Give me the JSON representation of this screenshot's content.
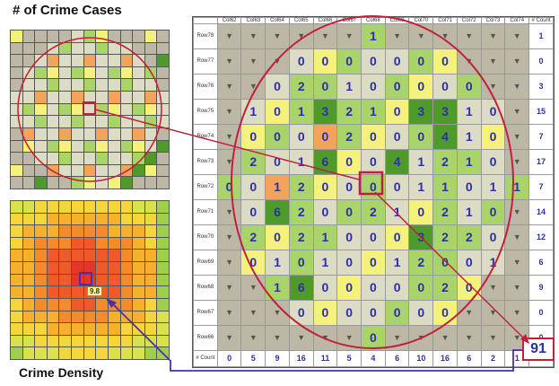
{
  "titles": {
    "count_map": "# of Crime Cases",
    "density_map": "Crime Density"
  },
  "table": {
    "corner": "",
    "col_headers": [
      "Col62",
      "Col63",
      "Col64",
      "Col65",
      "Col66",
      "Col67",
      "Col68",
      "Col69",
      "Col70",
      "Col71",
      "Col72",
      "Col73",
      "Col74"
    ],
    "count_header": "# Count",
    "row_headers": [
      "Row78",
      "Row77",
      "Row76",
      "Row75",
      "Row74",
      "Row73",
      "Row72",
      "Row71",
      "Row70",
      "Row69",
      "Row68",
      "Row67",
      "Row66"
    ],
    "row_counts": [
      "1",
      "0",
      "3",
      "15",
      "7",
      "17",
      "7",
      "14",
      "12",
      "6",
      "9",
      "0",
      "0"
    ],
    "col_count_label": "# Count",
    "col_counts": [
      "0",
      "5",
      "9",
      "16",
      "11",
      "5",
      "4",
      "6",
      "10",
      "16",
      "6",
      "2",
      "1"
    ],
    "cells": [
      [
        "▼",
        "▼",
        "▼",
        "▼",
        "▼",
        "▼",
        "1",
        "▼",
        "▼",
        "▼",
        "▼",
        "▼",
        "▼"
      ],
      [
        "▼",
        "▼",
        "▼",
        "0",
        "0",
        "0",
        "0",
        "0",
        "0",
        "0",
        "▼",
        "▼",
        "▼"
      ],
      [
        "▼",
        "▼",
        "0",
        "2",
        "0",
        "1",
        "0",
        "0",
        "0",
        "0",
        "0",
        "▼",
        "▼"
      ],
      [
        "▼",
        "1",
        "0",
        "1",
        "3",
        "2",
        "1",
        "0",
        "3",
        "3",
        "1",
        "0",
        "▼"
      ],
      [
        "▼",
        "0",
        "0",
        "0",
        "0",
        "2",
        "0",
        "0",
        "0",
        "4",
        "1",
        "0",
        "▼"
      ],
      [
        "▼",
        "2",
        "0",
        "1",
        "6",
        "0",
        "0",
        "4",
        "1",
        "2",
        "1",
        "0",
        "▼"
      ],
      [
        "0",
        "0",
        "1",
        "2",
        "0",
        "0",
        "0",
        "0",
        "1",
        "1",
        "0",
        "1",
        "1"
      ],
      [
        "▼",
        "0",
        "6",
        "2",
        "0",
        "0",
        "2",
        "1",
        "0",
        "2",
        "1",
        "0",
        "▼"
      ],
      [
        "▼",
        "2",
        "0",
        "2",
        "1",
        "0",
        "0",
        "0",
        "3",
        "2",
        "2",
        "0",
        "▼"
      ],
      [
        "▼",
        "0",
        "1",
        "0",
        "1",
        "0",
        "0",
        "1",
        "2",
        "0",
        "0",
        "1",
        "▼"
      ],
      [
        "▼",
        "▼",
        "1",
        "6",
        "0",
        "0",
        "0",
        "0",
        "0",
        "2",
        "0",
        "▼",
        "▼"
      ],
      [
        "▼",
        "▼",
        "▼",
        "0",
        "0",
        "0",
        "0",
        "0",
        "0",
        "0",
        "▼",
        "▼",
        "▼"
      ],
      [
        "▼",
        "▼",
        "▼",
        "▼",
        "▼",
        "▼",
        "0",
        "▼",
        "▼",
        "▼",
        "▼",
        "▼",
        "▼"
      ]
    ],
    "grand_total": "91"
  },
  "density_label": "9.8",
  "colors": {
    "circle": "#c2203a",
    "arrow": "#4a2fb0",
    "number": "#2d2fa6",
    "gray_cell": "#bdb8a6",
    "light_cell": "#dcdbc4",
    "green_light": "#a8d46a",
    "green_dark": "#4e9a2a",
    "yellow": "#f4f27a",
    "orange": "#f3a35a"
  }
}
